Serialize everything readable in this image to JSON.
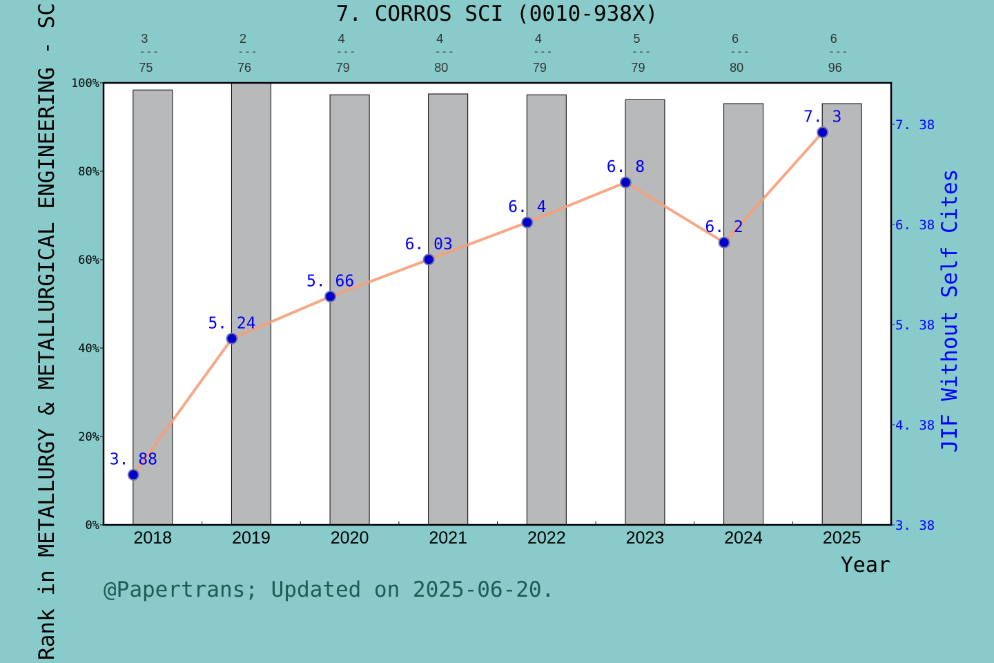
{
  "chart_data": {
    "type": "bar+line",
    "title": "7. CORROS SCI (0010-938X)",
    "xlabel": "Year",
    "ylabel_left": "Rank in METALLURGY & METALLURGICAL ENGINEERING - SC",
    "ylabel_right": "JIF Without Self Cites",
    "categories": [
      "2018",
      "2019",
      "2020",
      "2021",
      "2022",
      "2023",
      "2024",
      "2025"
    ],
    "left_axis": {
      "ylim": [
        0,
        100
      ],
      "ticks": [
        "0%",
        "20%",
        "40%",
        "60%",
        "80%",
        "100%"
      ]
    },
    "right_axis": {
      "ylim": [
        3.38,
        7.38
      ],
      "ticks": [
        "3.38",
        "4.38",
        "5.38",
        "6.38",
        "7.38"
      ]
    },
    "bars": {
      "values": [
        98.4,
        100,
        97.3,
        97.5,
        97.3,
        96.2,
        95.3,
        95.3
      ],
      "color": "#b8b9bb"
    },
    "rank_labels": [
      {
        "rank": "3",
        "total": "75"
      },
      {
        "rank": "2",
        "total": "76"
      },
      {
        "rank": "4",
        "total": "79"
      },
      {
        "rank": "4",
        "total": "80"
      },
      {
        "rank": "4",
        "total": "79"
      },
      {
        "rank": "5",
        "total": "79"
      },
      {
        "rank": "6",
        "total": "80"
      },
      {
        "rank": "6",
        "total": "96"
      }
    ],
    "line": {
      "values": [
        3.88,
        5.24,
        5.66,
        6.03,
        6.4,
        6.8,
        6.2,
        7.3
      ],
      "labels": [
        "3.88",
        "5.24",
        "5.66",
        "6.03",
        "6.4",
        "6.8",
        "6.2",
        "7.3"
      ],
      "color": "#f5a07a",
      "marker_color": "#0000cc"
    },
    "grid": false
  },
  "footer": "@Papertrans; Updated on 2025-06-20."
}
